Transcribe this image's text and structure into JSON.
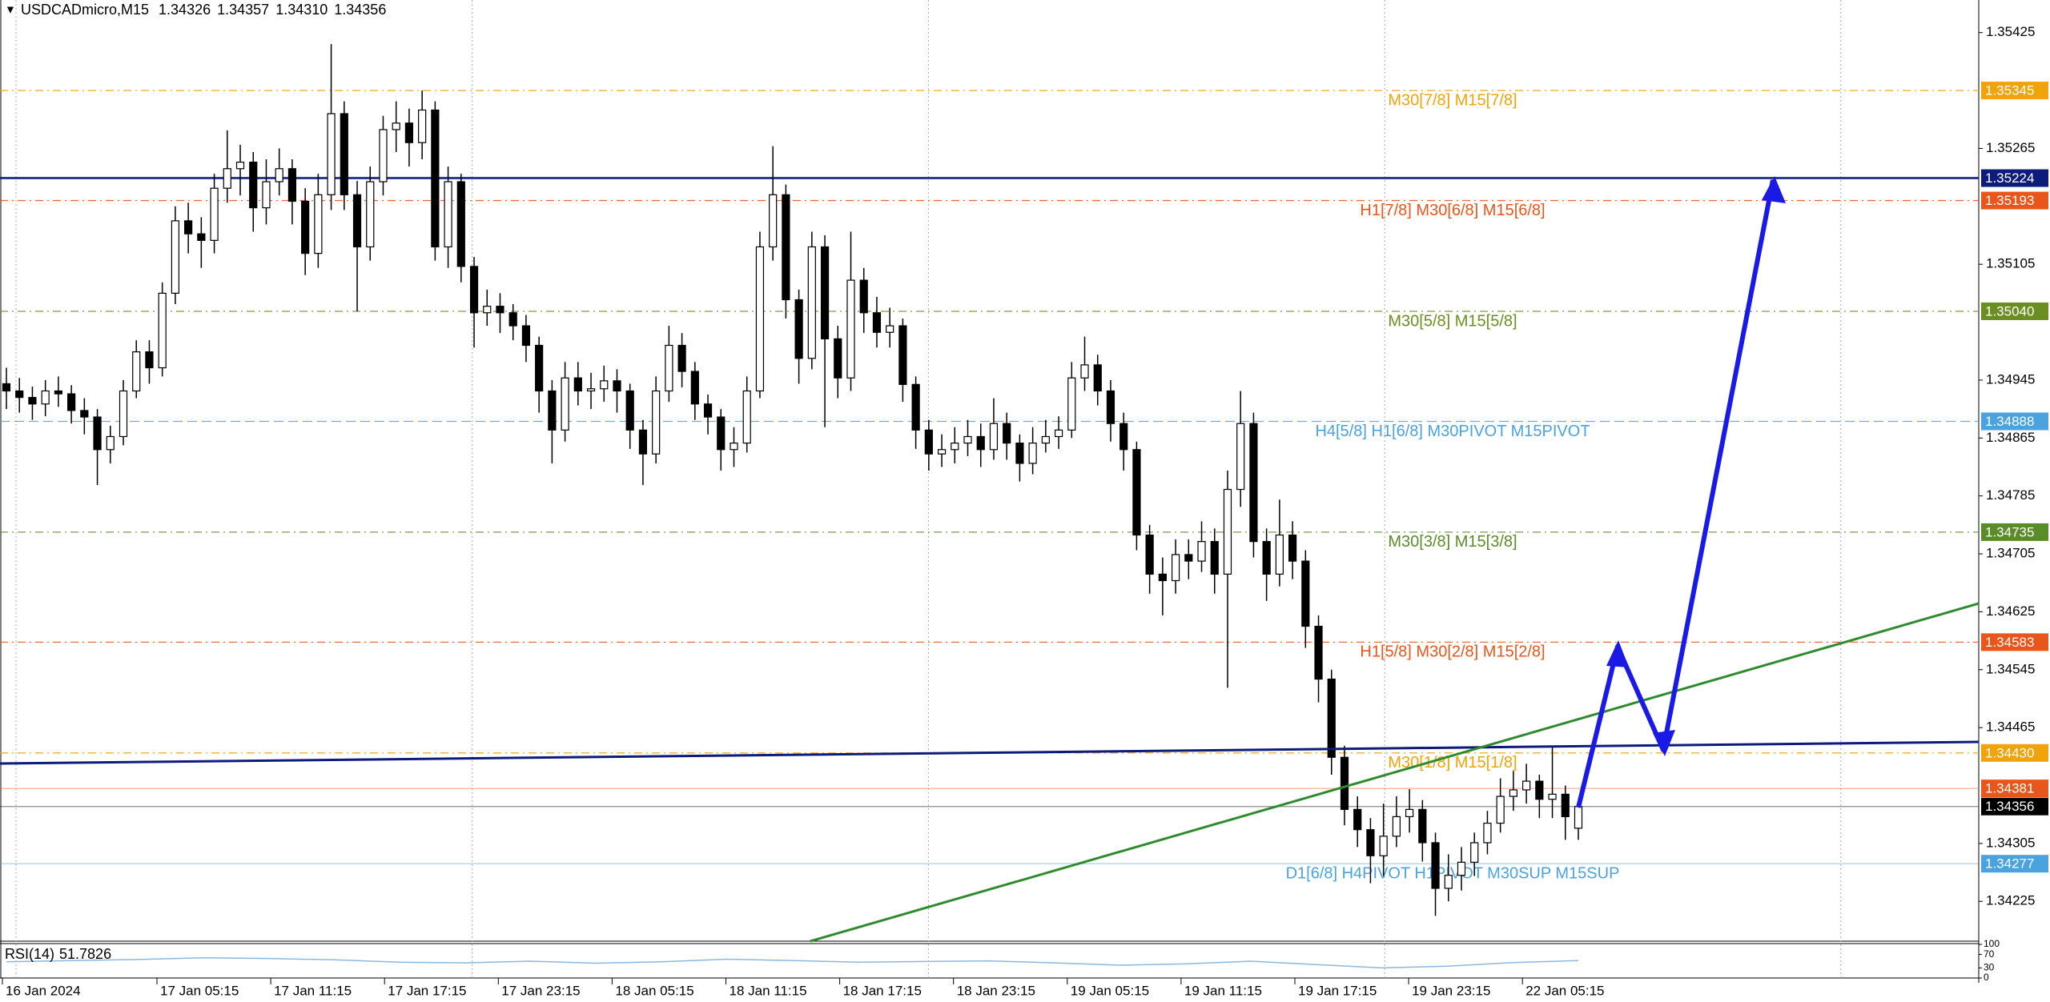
{
  "chart_data": {
    "type": "candlestick",
    "symbol": "USDCADmicro,M15",
    "quote": [
      "1.34326",
      "1.34357",
      "1.34310",
      "1.34356"
    ],
    "ylim": [
      1.3417,
      1.3547
    ],
    "yticks": [
      1.35425,
      1.35265,
      1.35105,
      1.34945,
      1.34865,
      1.34785,
      1.34705,
      1.34625,
      1.34545,
      1.34465,
      1.34305,
      1.34225
    ],
    "time_labels": [
      "16 Jan 2024",
      "17 Jan 05:15",
      "17 Jan 11:15",
      "17 Jan 17:15",
      "17 Jan 23:15",
      "18 Jan 05:15",
      "18 Jan 11:15",
      "18 Jan 17:15",
      "18 Jan 23:15",
      "19 Jan 05:15",
      "19 Jan 11:15",
      "19 Jan 17:15",
      "19 Jan 23:15",
      "22 Jan 05:15"
    ],
    "up_color": "#ffffff",
    "down_color": "#000000",
    "candles": [
      [
        1.3494,
        1.34962,
        1.34905,
        1.3493
      ],
      [
        1.3493,
        1.34948,
        1.349,
        1.34921
      ],
      [
        1.34921,
        1.34936,
        1.3489,
        1.34912
      ],
      [
        1.34912,
        1.34945,
        1.34895,
        1.3493
      ],
      [
        1.3493,
        1.3495,
        1.34908,
        1.34926
      ],
      [
        1.34926,
        1.34938,
        1.34885,
        1.34903
      ],
      [
        1.34903,
        1.3492,
        1.3487,
        1.34894
      ],
      [
        1.34894,
        1.34905,
        1.348,
        1.34849
      ],
      [
        1.34849,
        1.34882,
        1.3483,
        1.34867
      ],
      [
        1.34867,
        1.34945,
        1.34855,
        1.3493
      ],
      [
        1.3493,
        1.35,
        1.3492,
        1.34984
      ],
      [
        1.34984,
        1.35,
        1.3494,
        1.34962
      ],
      [
        1.34962,
        1.3508,
        1.3495,
        1.35065
      ],
      [
        1.35065,
        1.35185,
        1.3505,
        1.35165
      ],
      [
        1.35165,
        1.3519,
        1.3512,
        1.35147
      ],
      [
        1.35147,
        1.3517,
        1.351,
        1.35138
      ],
      [
        1.35138,
        1.3523,
        1.3512,
        1.3521
      ],
      [
        1.3521,
        1.3529,
        1.3519,
        1.35237
      ],
      [
        1.35237,
        1.3527,
        1.352,
        1.35246
      ],
      [
        1.35246,
        1.3526,
        1.3515,
        1.35183
      ],
      [
        1.35183,
        1.3525,
        1.3516,
        1.35219
      ],
      [
        1.35219,
        1.35265,
        1.352,
        1.35237
      ],
      [
        1.35237,
        1.3525,
        1.3516,
        1.35192
      ],
      [
        1.35192,
        1.3521,
        1.3509,
        1.3512
      ],
      [
        1.3512,
        1.3523,
        1.351,
        1.35201
      ],
      [
        1.35201,
        1.35409,
        1.3518,
        1.35313
      ],
      [
        1.35313,
        1.3533,
        1.3518,
        1.35201
      ],
      [
        1.35201,
        1.3522,
        1.3504,
        1.35129
      ],
      [
        1.35129,
        1.3524,
        1.3511,
        1.35219
      ],
      [
        1.35219,
        1.3531,
        1.352,
        1.35291
      ],
      [
        1.35291,
        1.3533,
        1.3526,
        1.353
      ],
      [
        1.353,
        1.3532,
        1.3524,
        1.35273
      ],
      [
        1.35273,
        1.35345,
        1.3525,
        1.35318
      ],
      [
        1.35318,
        1.3533,
        1.3511,
        1.35129
      ],
      [
        1.35129,
        1.3524,
        1.351,
        1.35219
      ],
      [
        1.35219,
        1.3523,
        1.3508,
        1.35102
      ],
      [
        1.35102,
        1.35115,
        1.3499,
        1.35038
      ],
      [
        1.35038,
        1.3507,
        1.3502,
        1.35047
      ],
      [
        1.35047,
        1.35065,
        1.3501,
        1.35038
      ],
      [
        1.35038,
        1.3505,
        1.35,
        1.3502
      ],
      [
        1.3502,
        1.35035,
        1.3497,
        1.34993
      ],
      [
        1.34993,
        1.35005,
        1.349,
        1.3493
      ],
      [
        1.3493,
        1.34945,
        1.3483,
        1.34876
      ],
      [
        1.34876,
        1.3497,
        1.3486,
        1.34948
      ],
      [
        1.34948,
        1.3497,
        1.3491,
        1.3493
      ],
      [
        1.3493,
        1.34955,
        1.34905,
        1.34933
      ],
      [
        1.34933,
        1.34965,
        1.34915,
        1.34944
      ],
      [
        1.34944,
        1.3496,
        1.349,
        1.3493
      ],
      [
        1.3493,
        1.3494,
        1.3485,
        1.34876
      ],
      [
        1.34876,
        1.3489,
        1.348,
        1.34843
      ],
      [
        1.34843,
        1.3495,
        1.3483,
        1.3493
      ],
      [
        1.3493,
        1.3502,
        1.34915,
        1.34993
      ],
      [
        1.34993,
        1.3501,
        1.34935,
        1.34957
      ],
      [
        1.34957,
        1.3497,
        1.3489,
        1.34912
      ],
      [
        1.34912,
        1.34925,
        1.3487,
        1.34894
      ],
      [
        1.34894,
        1.34905,
        1.3482,
        1.34849
      ],
      [
        1.34849,
        1.3488,
        1.34825,
        1.34858
      ],
      [
        1.34858,
        1.3495,
        1.34845,
        1.3493
      ],
      [
        1.3493,
        1.3515,
        1.3492,
        1.35129
      ],
      [
        1.35129,
        1.35268,
        1.3511,
        1.35201
      ],
      [
        1.35201,
        1.35215,
        1.3503,
        1.35056
      ],
      [
        1.35056,
        1.3507,
        1.3494,
        1.34975
      ],
      [
        1.34975,
        1.3515,
        1.3496,
        1.35129
      ],
      [
        1.35129,
        1.35145,
        1.3488,
        1.35002
      ],
      [
        1.35002,
        1.3502,
        1.3492,
        1.34948
      ],
      [
        1.34948,
        1.3515,
        1.3493,
        1.35083
      ],
      [
        1.35083,
        1.351,
        1.3501,
        1.35038
      ],
      [
        1.35038,
        1.3506,
        1.3499,
        1.35011
      ],
      [
        1.35011,
        1.35045,
        1.3499,
        1.3502
      ],
      [
        1.3502,
        1.3503,
        1.34915,
        1.34939
      ],
      [
        1.34939,
        1.3495,
        1.3485,
        1.34876
      ],
      [
        1.34876,
        1.3489,
        1.3482,
        1.34843
      ],
      [
        1.34843,
        1.3487,
        1.34825,
        1.34849
      ],
      [
        1.34849,
        1.3488,
        1.3483,
        1.34858
      ],
      [
        1.34858,
        1.3489,
        1.3484,
        1.34867
      ],
      [
        1.34867,
        1.34885,
        1.34825,
        1.34849
      ],
      [
        1.34849,
        1.3492,
        1.34835,
        1.34885
      ],
      [
        1.34885,
        1.349,
        1.34835,
        1.34858
      ],
      [
        1.34858,
        1.3487,
        1.34805,
        1.3483
      ],
      [
        1.3483,
        1.3488,
        1.34815,
        1.34858
      ],
      [
        1.34858,
        1.3489,
        1.34845,
        1.34867
      ],
      [
        1.34867,
        1.34895,
        1.3485,
        1.34876
      ],
      [
        1.34876,
        1.3497,
        1.34865,
        1.34948
      ],
      [
        1.34948,
        1.35005,
        1.3493,
        1.34966
      ],
      [
        1.34966,
        1.3498,
        1.3491,
        1.3493
      ],
      [
        1.3493,
        1.34945,
        1.3486,
        1.34885
      ],
      [
        1.34885,
        1.349,
        1.3482,
        1.34849
      ],
      [
        1.34849,
        1.3486,
        1.3471,
        1.34731
      ],
      [
        1.34731,
        1.34745,
        1.3465,
        1.34677
      ],
      [
        1.34677,
        1.347,
        1.3462,
        1.34668
      ],
      [
        1.34668,
        1.34725,
        1.3465,
        1.34704
      ],
      [
        1.34704,
        1.34725,
        1.3467,
        1.34695
      ],
      [
        1.34695,
        1.3475,
        1.3468,
        1.34722
      ],
      [
        1.34722,
        1.3474,
        1.3465,
        1.34677
      ],
      [
        1.34677,
        1.3482,
        1.3452,
        1.34794
      ],
      [
        1.34794,
        1.3493,
        1.3477,
        1.34885
      ],
      [
        1.34885,
        1.349,
        1.347,
        1.34722
      ],
      [
        1.34722,
        1.3474,
        1.3464,
        1.34677
      ],
      [
        1.34677,
        1.3478,
        1.3466,
        1.34731
      ],
      [
        1.34731,
        1.3475,
        1.3467,
        1.34695
      ],
      [
        1.34695,
        1.3471,
        1.34575,
        1.34605
      ],
      [
        1.34605,
        1.3462,
        1.345,
        1.34532
      ],
      [
        1.34532,
        1.34545,
        1.344,
        1.34424
      ],
      [
        1.34424,
        1.3444,
        1.3433,
        1.34352
      ],
      [
        1.34352,
        1.3437,
        1.343,
        1.34324
      ],
      [
        1.34324,
        1.3434,
        1.3425,
        1.34288
      ],
      [
        1.34288,
        1.3436,
        1.3426,
        1.34315
      ],
      [
        1.34315,
        1.3437,
        1.343,
        1.34342
      ],
      [
        1.34342,
        1.3438,
        1.3432,
        1.34352
      ],
      [
        1.34352,
        1.34365,
        1.3428,
        1.34306
      ],
      [
        1.34306,
        1.3432,
        1.34205,
        1.34243
      ],
      [
        1.34243,
        1.3429,
        1.34225,
        1.34261
      ],
      [
        1.34261,
        1.343,
        1.3424,
        1.34279
      ],
      [
        1.34279,
        1.3432,
        1.3426,
        1.34306
      ],
      [
        1.34306,
        1.3435,
        1.3429,
        1.34333
      ],
      [
        1.34333,
        1.34395,
        1.3432,
        1.3437
      ],
      [
        1.3437,
        1.34405,
        1.3435,
        1.34379
      ],
      [
        1.34379,
        1.34415,
        1.3436,
        1.34391
      ],
      [
        1.34391,
        1.344,
        1.3434,
        1.34366
      ],
      [
        1.34366,
        1.3444,
        1.3434,
        1.34373
      ],
      [
        1.34373,
        1.34385,
        1.3431,
        1.34342
      ],
      [
        1.34326,
        1.34357,
        1.3431,
        1.34356
      ]
    ],
    "levels": [
      {
        "value": 1.35345,
        "label": "1.35345",
        "color": "#f0a30a",
        "style": "dashdot",
        "text": "M30[7/8] M15[7/8]"
      },
      {
        "value": 1.35224,
        "label": "1.35224",
        "color": "#0d1b7a",
        "style": "thick"
      },
      {
        "value": 1.35193,
        "label": "1.35193",
        "color": "#e8561b",
        "style": "dashdot",
        "text": "H1[7/8] M30[6/8] M15[6/8]"
      },
      {
        "value": 1.3504,
        "label": "1.35040",
        "color": "#6b8e23",
        "style": "dashdot",
        "text": "M30[5/8] M15[5/8]"
      },
      {
        "value": 1.34888,
        "label": "1.34888",
        "color": "#4aa3df",
        "style": "dash",
        "text": "H4[5/8] H1[6/8] M30PIVOT M15PIVOT"
      },
      {
        "value": 1.34735,
        "label": "1.34735",
        "color": "#5b8c2a",
        "style": "dashdot",
        "text": "M30[3/8] M15[3/8]"
      },
      {
        "value": 1.34583,
        "label": "1.34583",
        "color": "#e8561b",
        "style": "dashdot",
        "text": "H1[5/8] M30[2/8] M15[2/8]"
      },
      {
        "value": 1.3443,
        "label": "1.34430",
        "color": "#f0a30a",
        "style": "dashdot",
        "text": "M30[1/8] M15[1/8]"
      },
      {
        "value": 1.34381,
        "label": "1.34381",
        "color": "#e8561b",
        "style": "solid"
      },
      {
        "value": 1.34356,
        "label": "1.34356",
        "color": "#000000",
        "style": "solid"
      },
      {
        "value": 1.34277,
        "label": "1.34277",
        "color": "#4aa3df",
        "style": "solid",
        "text": "D1[6/8] H4PIVOT H1PIVOT M30SUP M15SUP"
      }
    ],
    "rsi": {
      "name": "RSI(14)",
      "color": "#8ab8e0",
      "ylim": [
        0,
        100
      ],
      "yticks": [
        100,
        70,
        30,
        0
      ],
      "values": [
        48,
        52,
        55,
        60,
        58,
        54,
        47,
        45,
        50,
        44,
        48,
        56,
        52,
        47,
        49,
        51,
        45,
        38,
        42,
        50,
        40,
        30,
        35,
        46,
        51.7826
      ]
    }
  }
}
